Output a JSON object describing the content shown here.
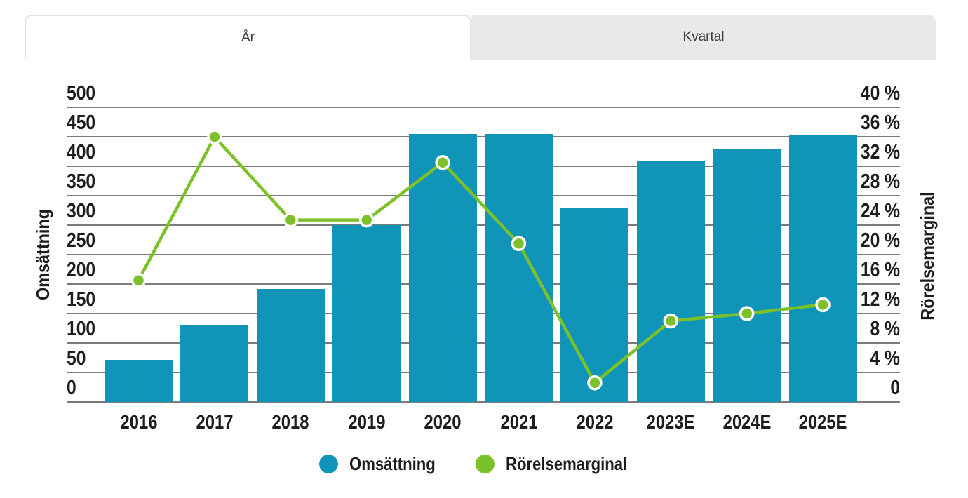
{
  "tabs": [
    {
      "label": "År",
      "active": true
    },
    {
      "label": "Kvartal",
      "active": false
    }
  ],
  "chart_data": {
    "type": "bar+line",
    "categories": [
      "2016",
      "2017",
      "2018",
      "2019",
      "2020",
      "2021",
      "2022",
      "2023E",
      "2024E",
      "2025E"
    ],
    "series": [
      {
        "name": "Omsättning",
        "type": "bar",
        "axis": "left",
        "color": "#1095b9",
        "values": [
          72,
          130,
          192,
          300,
          455,
          455,
          330,
          410,
          430,
          452
        ]
      },
      {
        "name": "Rörelsemarginal",
        "type": "line",
        "axis": "right",
        "color": "#7dc12a",
        "marker_ring_color": "#ffffff",
        "values": [
          16.5,
          36,
          24.7,
          24.7,
          32.5,
          21.5,
          2.6,
          11,
          12,
          13.2
        ]
      }
    ],
    "left_axis": {
      "title": "Omsättning",
      "min": 0,
      "max": 500,
      "ticks": [
        "500",
        "450",
        "400",
        "350",
        "300",
        "250",
        "200",
        "150",
        "100",
        "50",
        "0"
      ]
    },
    "right_axis": {
      "title": "Rörelsemarginal",
      "min": 0,
      "max": 40,
      "ticks": [
        "40 %",
        "36 %",
        "32 %",
        "28 %",
        "24 %",
        "20 %",
        "16 %",
        "12 %",
        "8 %",
        "4 %",
        "0"
      ]
    },
    "grid": true,
    "grid_color": "#7b7b7b",
    "legend_position": "bottom",
    "title": "",
    "xlabel": "",
    "ylabel": "Omsättning"
  }
}
